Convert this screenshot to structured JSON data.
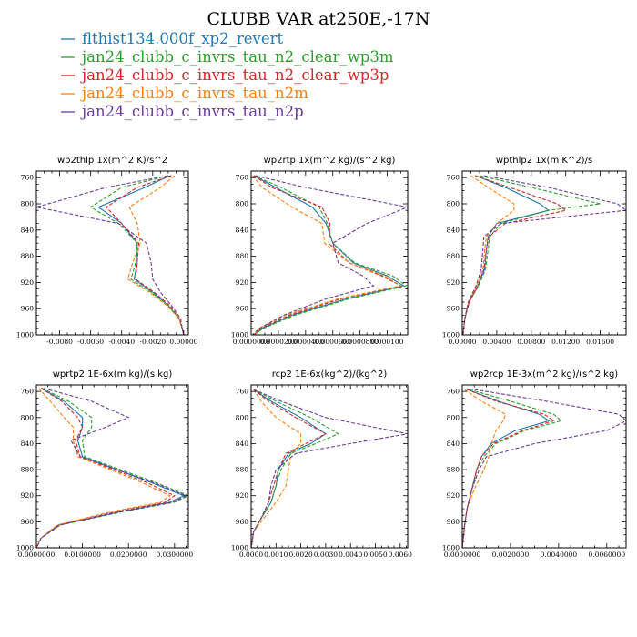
{
  "title": "CLUBB VAR at250E,-17N",
  "legend": [
    {
      "label": "flthist134.000f_xp2_revert",
      "color": "#1f77b4",
      "dash": "solid"
    },
    {
      "label": "jan24_clubb_c_invrs_tau_n2_clear_wp3m",
      "color": "#2ca02c",
      "dash": "dashed"
    },
    {
      "label": "jan24_clubb_c_invrs_tau_n2_clear_wp3p",
      "color": "#d62728",
      "dash": "dashed"
    },
    {
      "label": "jan24_clubb_c_invrs_tau_n2m",
      "color": "#ff7f0e",
      "dash": "dashed"
    },
    {
      "label": "jan24_clubb_c_invrs_tau_n2p",
      "color": "#6a3d9a",
      "dash": "dashed"
    }
  ],
  "chart_data": [
    {
      "type": "line",
      "title": "wp2thlp  1x(m^2 K)/s^2",
      "xlim": [
        -0.0095,
        0.0003
      ],
      "ylim": [
        1000,
        750
      ],
      "xticks": [
        -0.008,
        -0.006,
        -0.004,
        -0.002,
        0.0
      ],
      "xtick_labels": [
        "-0.0080",
        "-0.0060",
        "-0.0040",
        "-0.0020",
        "0.00000"
      ],
      "yticks": [
        760,
        800,
        840,
        880,
        920,
        960,
        1000
      ],
      "y": [
        757,
        775,
        805,
        830,
        860,
        890,
        915,
        935,
        955,
        975,
        990,
        1000
      ],
      "series": [
        {
          "name": "flthist134.000f_xp2_revert",
          "values": [
            -0.0009,
            -0.0025,
            -0.0055,
            -0.004,
            -0.003,
            -0.003,
            -0.0032,
            -0.002,
            -0.001,
            -0.0003,
            -0.0001,
            0.0
          ]
        },
        {
          "name": "jan24_clubb_c_invrs_tau_n2_clear_wp3m",
          "values": [
            -0.001,
            -0.004,
            -0.006,
            -0.0042,
            -0.003,
            -0.0031,
            -0.0034,
            -0.0021,
            -0.001,
            -0.0003,
            -0.0001,
            0.0
          ]
        },
        {
          "name": "jan24_clubb_c_invrs_tau_n2_clear_wp3p",
          "values": [
            -0.0008,
            -0.003,
            -0.005,
            -0.004,
            -0.0029,
            -0.003,
            -0.0031,
            -0.0019,
            -0.0009,
            -0.0003,
            -0.0001,
            0.0
          ]
        },
        {
          "name": "jan24_clubb_c_invrs_tau_n2m",
          "values": [
            -0.0006,
            -0.0015,
            -0.0035,
            -0.003,
            -0.0028,
            -0.0033,
            -0.0036,
            -0.0022,
            -0.0011,
            -0.0003,
            -0.0001,
            0.0
          ]
        },
        {
          "name": "jan24_clubb_c_invrs_tau_n2p",
          "values": [
            -0.001,
            -0.005,
            -0.0095,
            -0.0042,
            -0.0024,
            -0.0021,
            -0.002,
            -0.0015,
            -0.0008,
            -0.0002,
            -0.0001,
            0.0
          ]
        }
      ]
    },
    {
      "type": "line",
      "title": "wp2rtp  1x(m^2 kg)/(s^2 kg)",
      "xlim": [
        0,
        0.000115
      ],
      "ylim": [
        1000,
        750
      ],
      "xticks": [
        0,
        2e-05,
        4e-05,
        6e-05,
        8e-05,
        0.0001
      ],
      "xtick_labels": [
        "0.0000000",
        "0.0000200",
        "0.0000400",
        "0.0000600",
        "0.0000800",
        "0.000100"
      ],
      "yticks": [
        760,
        800,
        840,
        880,
        920,
        960,
        1000
      ],
      "y": [
        757,
        775,
        805,
        830,
        860,
        890,
        910,
        925,
        945,
        970,
        990,
        1000
      ],
      "series": [
        {
          "name": "flthist134.000f_xp2_revert",
          "values": [
            2e-06,
            1.8e-05,
            4.5e-05,
            5.5e-05,
            6e-05,
            7.5e-05,
            0.0001,
            0.000112,
            7e-05,
            3e-05,
            8e-06,
            2e-06
          ]
        },
        {
          "name": "jan24_clubb_c_invrs_tau_n2_clear_wp3m",
          "values": [
            2e-06,
            2.2e-05,
            5e-05,
            5.6e-05,
            6e-05,
            7.6e-05,
            0.000104,
            0.000114,
            7.2e-05,
            3.2e-05,
            9e-06,
            2e-06
          ]
        },
        {
          "name": "jan24_clubb_c_invrs_tau_n2_clear_wp3p",
          "values": [
            2e-06,
            1.5e-05,
            5.2e-05,
            5.8e-05,
            5.7e-05,
            7.2e-05,
            9.6e-05,
            0.00011,
            6.6e-05,
            2.8e-05,
            7e-06,
            2e-06
          ]
        },
        {
          "name": "jan24_clubb_c_invrs_tau_n2m",
          "values": [
            1e-06,
            8e-06,
            3e-05,
            5.2e-05,
            5.4e-05,
            7.2e-05,
            9.8e-05,
            0.00011,
            6.4e-05,
            2.5e-05,
            6e-06,
            2e-06
          ]
        },
        {
          "name": "jan24_clubb_c_invrs_tau_n2p",
          "values": [
            3e-06,
            4e-05,
            0.000115,
            8.5e-05,
            6e-05,
            6.4e-05,
            8.2e-05,
            9e-05,
            5.5e-05,
            2.4e-05,
            6e-06,
            1e-06
          ]
        }
      ]
    },
    {
      "type": "line",
      "title": "wpthlp2  1x(m K^2)/s",
      "xlim": [
        0,
        0.019
      ],
      "ylim": [
        1000,
        750
      ],
      "xticks": [
        0,
        0.004,
        0.008,
        0.012,
        0.016
      ],
      "xtick_labels": [
        "0.00000",
        "0.00400",
        "0.00800",
        "0.01200",
        "0.01600"
      ],
      "yticks": [
        760,
        800,
        840,
        880,
        920,
        960,
        1000
      ],
      "y": [
        757,
        775,
        800,
        810,
        830,
        850,
        870,
        900,
        925,
        950,
        975,
        1000
      ],
      "series": [
        {
          "name": "flthist134.000f_xp2_revert",
          "values": [
            0.0015,
            0.005,
            0.009,
            0.01,
            0.004,
            0.003,
            0.0028,
            0.0026,
            0.0018,
            0.0008,
            0.0003,
            0.0001
          ]
        },
        {
          "name": "jan24_clubb_c_invrs_tau_n2_clear_wp3m",
          "values": [
            0.002,
            0.008,
            0.016,
            0.01,
            0.0045,
            0.0032,
            0.003,
            0.0027,
            0.0019,
            0.0008,
            0.0003,
            0.0001
          ]
        },
        {
          "name": "jan24_clubb_c_invrs_tau_n2_clear_wp3p",
          "values": [
            0.0015,
            0.0055,
            0.011,
            0.012,
            0.005,
            0.0031,
            0.0028,
            0.0025,
            0.0018,
            0.0008,
            0.0003,
            0.0001
          ]
        },
        {
          "name": "jan24_clubb_c_invrs_tau_n2m",
          "values": [
            0.001,
            0.003,
            0.006,
            0.006,
            0.004,
            0.0028,
            0.0026,
            0.0024,
            0.0017,
            0.0007,
            0.0003,
            0.0001
          ]
        },
        {
          "name": "jan24_clubb_c_invrs_tau_n2p",
          "values": [
            0.0025,
            0.01,
            0.018,
            0.019,
            0.0045,
            0.0025,
            0.0024,
            0.0022,
            0.0016,
            0.0007,
            0.0003,
            0.0001
          ]
        }
      ]
    },
    {
      "type": "line",
      "title": "wprtp2  1E-6x(m kg)/(s kg)",
      "xlim": [
        0,
        0.033
      ],
      "ylim": [
        1000,
        750
      ],
      "xticks": [
        0,
        0.01,
        0.02,
        0.03
      ],
      "xtick_labels": [
        "0.0000000",
        "0.0100000",
        "0.0200000",
        "0.0300000"
      ],
      "yticks": [
        760,
        800,
        840,
        880,
        920,
        960,
        1000
      ],
      "y": [
        755,
        775,
        800,
        815,
        835,
        860,
        900,
        920,
        930,
        945,
        965,
        985,
        1000
      ],
      "series": [
        {
          "name": "flthist134.000f_xp2_revert",
          "values": [
            0.001,
            0.006,
            0.01,
            0.01,
            0.009,
            0.01,
            0.025,
            0.032,
            0.029,
            0.018,
            0.005,
            0.001,
            0.0
          ]
        },
        {
          "name": "jan24_clubb_c_invrs_tau_n2_clear_wp3m",
          "values": [
            0.0012,
            0.007,
            0.012,
            0.012,
            0.01,
            0.0105,
            0.026,
            0.033,
            0.03,
            0.0185,
            0.0052,
            0.001,
            0.0
          ]
        },
        {
          "name": "jan24_clubb_c_invrs_tau_n2_clear_wp3p",
          "values": [
            0.001,
            0.0055,
            0.009,
            0.01,
            0.0085,
            0.0095,
            0.024,
            0.03,
            0.028,
            0.017,
            0.0048,
            0.001,
            0.0
          ]
        },
        {
          "name": "jan24_clubb_c_invrs_tau_n2m",
          "values": [
            0.0005,
            0.003,
            0.006,
            0.008,
            0.008,
            0.009,
            0.023,
            0.029,
            0.027,
            0.016,
            0.0045,
            0.001,
            0.0
          ]
        },
        {
          "name": "jan24_clubb_c_invrs_tau_n2p",
          "values": [
            0.0015,
            0.012,
            0.02,
            0.015,
            0.0075,
            0.0095,
            0.0255,
            0.0325,
            0.0295,
            0.018,
            0.005,
            0.001,
            0.0
          ]
        }
      ]
    },
    {
      "type": "line",
      "title": "rcp2  1E-6x(kg^2)/(kg^2)",
      "xlim": [
        0,
        0.0063
      ],
      "ylim": [
        1000,
        750
      ],
      "xticks": [
        0,
        0.001,
        0.002,
        0.003,
        0.004,
        0.005,
        0.006
      ],
      "xtick_labels": [
        "0.0000",
        "0.0010",
        "0.0020",
        "0.0030",
        "0.0040",
        "0.0050",
        "0.0060"
      ],
      "yticks": [
        760,
        800,
        840,
        880,
        920,
        960,
        1000
      ],
      "y": [
        757,
        775,
        800,
        825,
        840,
        855,
        880,
        905,
        930,
        955,
        975,
        1000
      ],
      "series": [
        {
          "name": "flthist134.000f_xp2_revert",
          "values": [
            0.0001,
            0.0008,
            0.002,
            0.003,
            0.0024,
            0.0015,
            0.0011,
            0.001,
            0.0008,
            0.0004,
            0.0001,
            0.0
          ]
        },
        {
          "name": "jan24_clubb_c_invrs_tau_n2_clear_wp3m",
          "values": [
            0.0001,
            0.001,
            0.0024,
            0.0035,
            0.0026,
            0.0016,
            0.0012,
            0.001,
            0.0008,
            0.0004,
            0.0001,
            0.0
          ]
        },
        {
          "name": "jan24_clubb_c_invrs_tau_n2_clear_wp3p",
          "values": [
            0.0001,
            0.0007,
            0.0018,
            0.003,
            0.0022,
            0.0014,
            0.0011,
            0.0009,
            0.0007,
            0.0004,
            0.0001,
            0.0
          ]
        },
        {
          "name": "jan24_clubb_c_invrs_tau_n2m",
          "values": [
            0.0001,
            0.0004,
            0.001,
            0.002,
            0.002,
            0.0016,
            0.0015,
            0.0014,
            0.001,
            0.0005,
            0.0001,
            0.0
          ]
        },
        {
          "name": "jan24_clubb_c_invrs_tau_n2p",
          "values": [
            0.0001,
            0.0012,
            0.003,
            0.0063,
            0.004,
            0.0018,
            0.001,
            0.0008,
            0.0007,
            0.0004,
            0.0001,
            0.0
          ]
        }
      ]
    },
    {
      "type": "line",
      "title": "wp2rcp  1E-3x(m^2 kg)/(s^2 kg)",
      "xlim": [
        0,
        0.0068
      ],
      "ylim": [
        1000,
        750
      ],
      "xticks": [
        0,
        0.002,
        0.004,
        0.006
      ],
      "xtick_labels": [
        "0.0000000",
        "0.0020000",
        "0.0040000",
        "0.0060000"
      ],
      "yticks": [
        760,
        800,
        840,
        880,
        920,
        960,
        1000
      ],
      "y": [
        757,
        775,
        795,
        805,
        820,
        840,
        860,
        880,
        910,
        940,
        965,
        1000
      ],
      "series": [
        {
          "name": "flthist134.000f_xp2_revert",
          "values": [
            0.0002,
            0.0015,
            0.0032,
            0.0036,
            0.0022,
            0.0012,
            0.0008,
            0.0006,
            0.0004,
            0.0002,
            0.0001,
            0.0
          ]
        },
        {
          "name": "jan24_clubb_c_invrs_tau_n2_clear_wp3m",
          "values": [
            0.0003,
            0.002,
            0.0038,
            0.0041,
            0.0026,
            0.0014,
            0.0009,
            0.0006,
            0.0004,
            0.0002,
            0.0001,
            0.0
          ]
        },
        {
          "name": "jan24_clubb_c_invrs_tau_n2_clear_wp3p",
          "values": [
            0.0002,
            0.0014,
            0.0034,
            0.0038,
            0.0025,
            0.0013,
            0.0008,
            0.0006,
            0.0004,
            0.0002,
            0.0001,
            0.0
          ]
        },
        {
          "name": "jan24_clubb_c_invrs_tau_n2m",
          "values": [
            0.0001,
            0.0008,
            0.0018,
            0.0017,
            0.0014,
            0.0012,
            0.0011,
            0.0009,
            0.0005,
            0.0002,
            0.0001,
            0.0
          ]
        },
        {
          "name": "jan24_clubb_c_invrs_tau_n2p",
          "values": [
            0.0005,
            0.0035,
            0.0065,
            0.0068,
            0.006,
            0.003,
            0.001,
            0.0007,
            0.0004,
            0.0002,
            0.0001,
            0.0
          ]
        }
      ]
    }
  ]
}
